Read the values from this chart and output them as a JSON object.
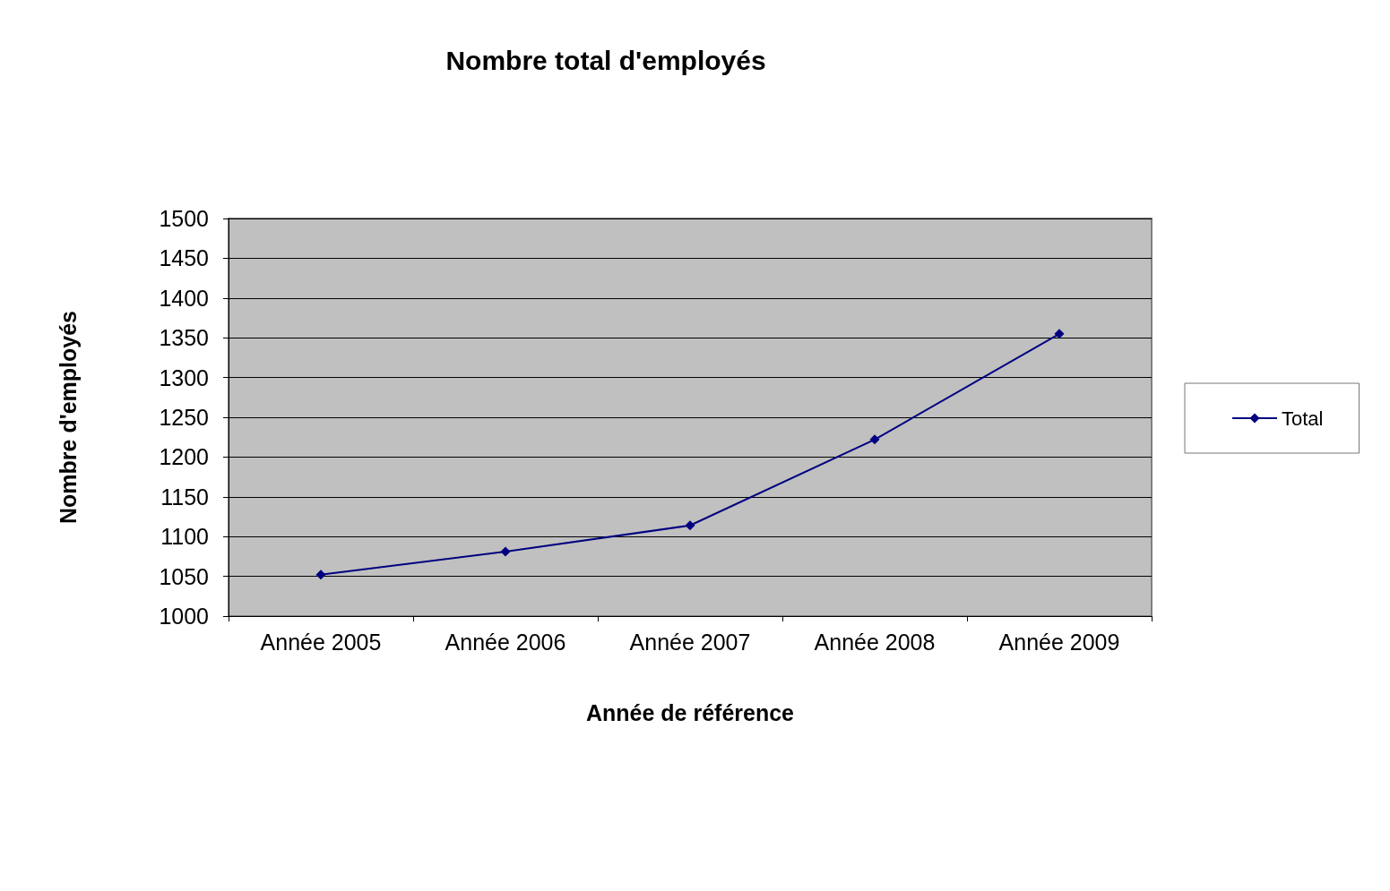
{
  "chart_data": {
    "type": "line",
    "title": "Nombre total d'employés",
    "xlabel": "Année de référence",
    "ylabel": "Nombre d'employés",
    "categories": [
      "Année 2005",
      "Année 2006",
      "Année 2007",
      "Année 2008",
      "Année 2009"
    ],
    "series": [
      {
        "name": "Total",
        "color": "#000080",
        "values": [
          1052,
          1081,
          1114,
          1222,
          1355
        ]
      }
    ],
    "ylim": [
      1000,
      1500
    ],
    "yticks": [
      1000,
      1050,
      1100,
      1150,
      1200,
      1250,
      1300,
      1350,
      1400,
      1450,
      1500
    ],
    "grid": "y",
    "legend": "right",
    "marker": "diamond",
    "line_style": "solid"
  }
}
